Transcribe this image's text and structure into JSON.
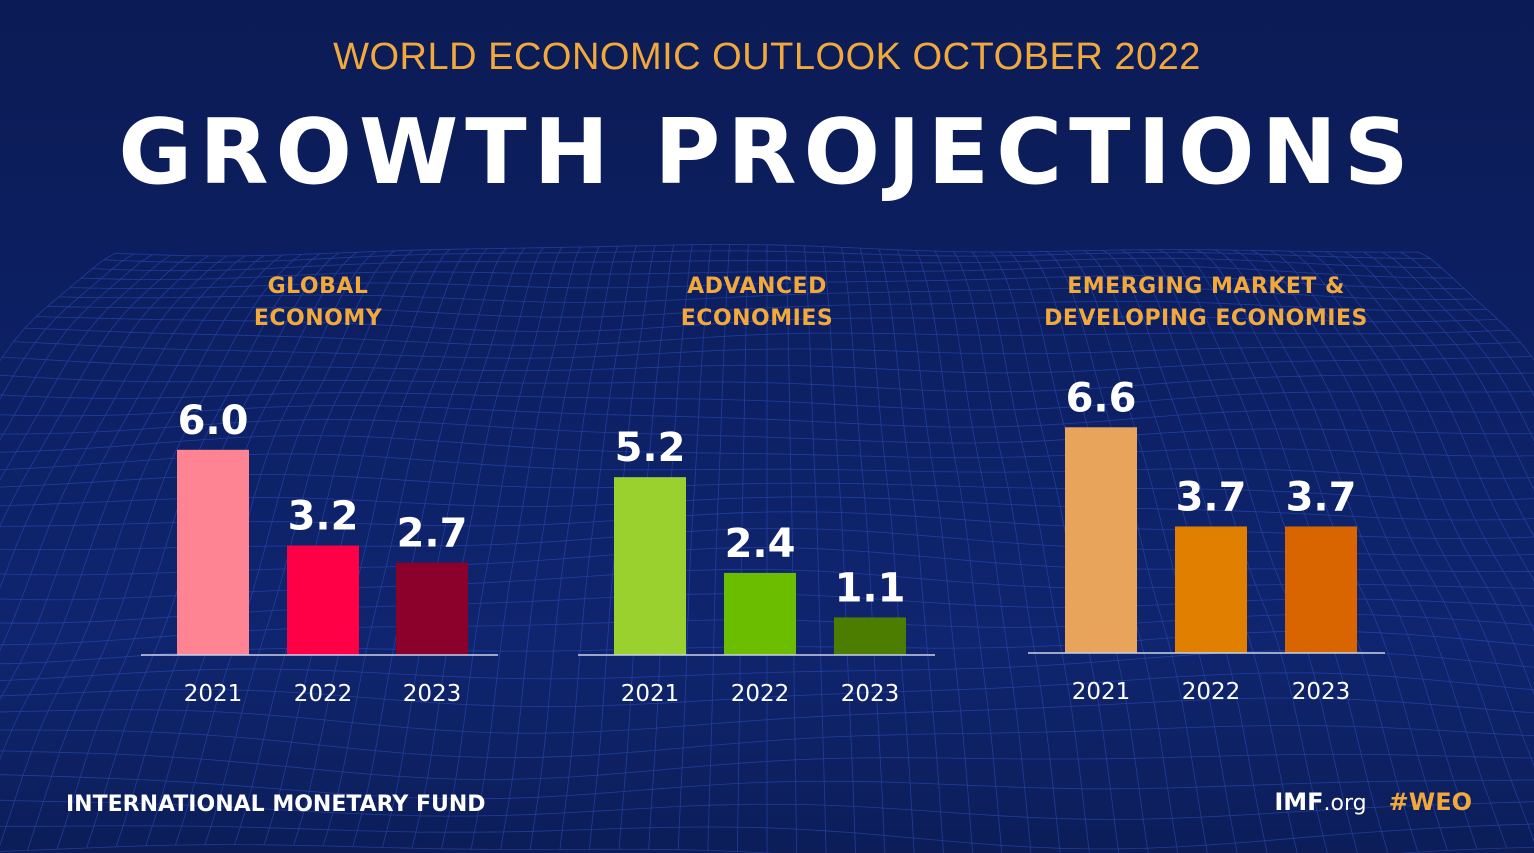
{
  "header": {
    "subtitle": "WORLD ECONOMIC OUTLOOK OCTOBER 2022",
    "title": "GROWTH PROJECTIONS"
  },
  "footer": {
    "left": "INTERNATIONAL MONETARY FUND",
    "site_bold": "IMF",
    "site_rest": ".org",
    "hashtag": "#WEO"
  },
  "colors": {
    "background": "#0d1f5c",
    "accent": "#f2a93b",
    "text": "#ffffff"
  },
  "chart_data": [
    {
      "type": "bar",
      "title_lines": [
        "GLOBAL",
        "ECONOMY"
      ],
      "categories": [
        "2021",
        "2022",
        "2023"
      ],
      "values": [
        6.0,
        3.2,
        2.7
      ],
      "value_labels": [
        "6.0",
        "3.2",
        "2.7"
      ],
      "colors": [
        "#ff8493",
        "#ff0047",
        "#8c002c"
      ],
      "ylim": [
        0,
        6.6
      ],
      "grid": false
    },
    {
      "type": "bar",
      "title_lines": [
        "ADVANCED",
        "ECONOMIES"
      ],
      "categories": [
        "2021",
        "2022",
        "2023"
      ],
      "values": [
        5.2,
        2.4,
        1.1
      ],
      "value_labels": [
        "5.2",
        "2.4",
        "1.1"
      ],
      "colors": [
        "#9ad12e",
        "#6bbd00",
        "#4c7d00"
      ],
      "ylim": [
        0,
        6.6
      ],
      "grid": false
    },
    {
      "type": "bar",
      "title_lines": [
        "EMERGING MARKET &",
        "DEVELOPING ECONOMIES"
      ],
      "categories": [
        "2021",
        "2022",
        "2023"
      ],
      "values": [
        6.6,
        3.7,
        3.7
      ],
      "value_labels": [
        "6.6",
        "3.7",
        "3.7"
      ],
      "colors": [
        "#e8a45a",
        "#e17f00",
        "#d86500"
      ],
      "ylim": [
        0,
        6.6
      ],
      "grid": false
    }
  ]
}
